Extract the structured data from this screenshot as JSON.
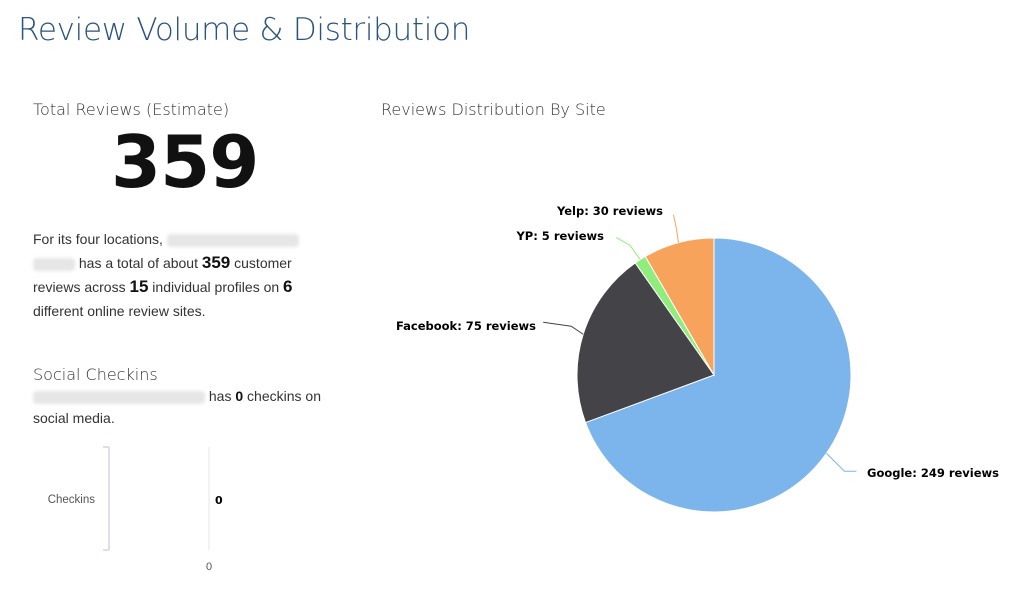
{
  "page": {
    "title": "Review Volume & Distribution"
  },
  "total": {
    "label": "Total Reviews (Estimate)",
    "value": "359"
  },
  "summary": {
    "prefix": "For its four locations,",
    "mid": "has a total of about",
    "reviews": "359",
    "mid2": "customer reviews across",
    "profiles": "15",
    "mid3": "individual profiles on",
    "sites": "6",
    "suffix": "different online review sites."
  },
  "checkins": {
    "label": "Social Checkins",
    "mid": "has",
    "count": "0",
    "suffix": "checkins on social media."
  },
  "chart_data": [
    {
      "type": "bar",
      "categories": [
        "Checkins"
      ],
      "values": [
        0
      ],
      "data_labels": [
        "0"
      ],
      "x_tick_labels": [
        "0"
      ]
    },
    {
      "type": "pie",
      "title": "Reviews Distribution By Site",
      "slices": [
        {
          "name": "Google",
          "value": 249,
          "label": "Google: 249 reviews",
          "color": "#7cb5ec"
        },
        {
          "name": "Facebook",
          "value": 75,
          "label": "Facebook: 75 reviews",
          "color": "#434348"
        },
        {
          "name": "YP",
          "value": 5,
          "label": "YP: 5 reviews",
          "color": "#90ed7d"
        },
        {
          "name": "Yelp",
          "value": 30,
          "label": "Yelp: 30 reviews",
          "color": "#f7a35c"
        }
      ]
    }
  ]
}
